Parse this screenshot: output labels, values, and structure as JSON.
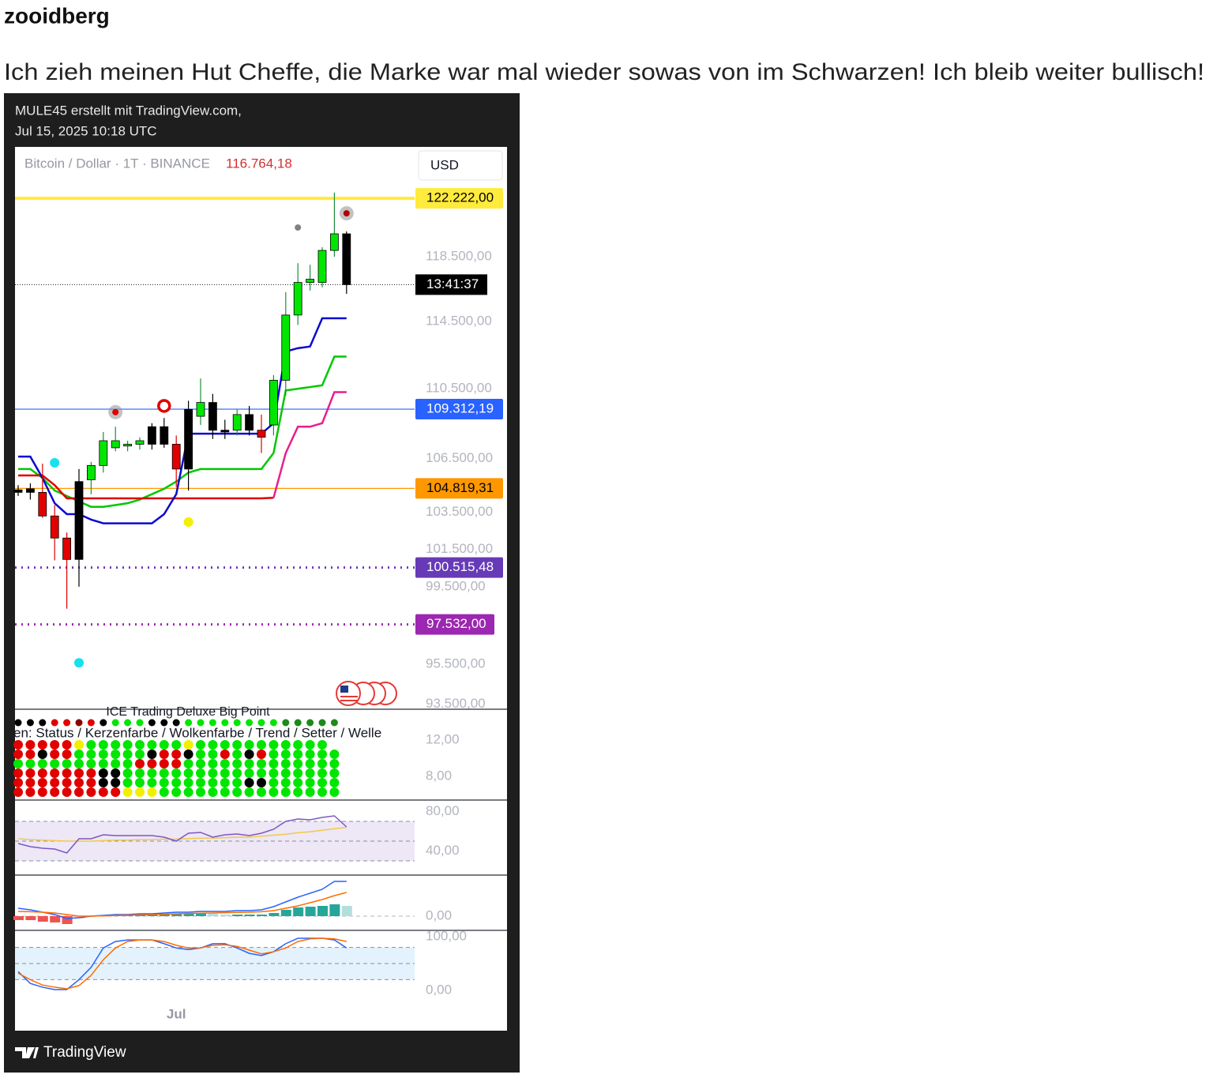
{
  "post": {
    "author": "zooidberg",
    "text": "Ich zieh meinen Hut Cheffe, die Marke war mal wieder sowas von im Schwarzen! Ich bleib weiter bullisch!"
  },
  "image": {
    "header": [
      "MULE45 erstellt mit TradingView.com,",
      "Jul 15, 2025 10:18 UTC"
    ],
    "footer": "TradingView"
  },
  "chart_data": [
    {
      "type": "candlestick",
      "title": "Bitcoin / Dollar · 1T · BINANCE",
      "last_price": 116764.18,
      "last_price_label": "116.764,18",
      "currency": "USD",
      "countdown": "13:41:37",
      "log_scale": true,
      "ylim": [
        93250,
        125600
      ],
      "yticks": [
        {
          "value": 118500,
          "label": "118.500,00"
        },
        {
          "value": 114500,
          "label": "114.500,00"
        },
        {
          "value": 110500,
          "label": "110.500,00"
        },
        {
          "value": 106500,
          "label": "106.500,00"
        },
        {
          "value": 103500,
          "label": "103.500,00"
        },
        {
          "value": 101500,
          "label": "101.500,00"
        },
        {
          "value": 99500,
          "label": "99.500,00"
        },
        {
          "value": 95500,
          "label": "95.500,00"
        },
        {
          "value": 93500,
          "label": "93.500,00"
        }
      ],
      "categories": [
        null,
        null,
        null,
        null,
        null,
        null,
        null,
        null,
        null,
        null,
        null,
        null,
        null,
        "Jul",
        null,
        null,
        null,
        null,
        null,
        null,
        null,
        null,
        null,
        null,
        null,
        null,
        null,
        null
      ],
      "open": [
        104740,
        104600,
        104600,
        103300,
        102100,
        100950,
        105300,
        106100,
        107500,
        107200,
        107300,
        107300,
        108300,
        107300,
        105900,
        108900,
        109700,
        108100,
        108100,
        109000,
        108100,
        108400,
        111000,
        114900,
        116900,
        116900,
        118900,
        119950
      ],
      "high": [
        105000,
        105100,
        106200,
        103900,
        102400,
        105900,
        106300,
        108000,
        108300,
        107500,
        107700,
        108500,
        108800,
        107800,
        109800,
        111100,
        110200,
        108700,
        109300,
        109500,
        109000,
        111300,
        116300,
        118100,
        118000,
        119100,
        122600,
        120100
      ],
      "low": [
        104400,
        104200,
        103200,
        100900,
        98350,
        99500,
        104500,
        105700,
        106900,
        106900,
        107000,
        107000,
        107100,
        104900,
        104700,
        108400,
        107600,
        107600,
        107800,
        107800,
        106800,
        107800,
        110100,
        114300,
        116400,
        116600,
        118500,
        116200
      ],
      "close": [
        104600,
        104800,
        103300,
        102100,
        100950,
        105200,
        106100,
        107500,
        107100,
        107300,
        107500,
        108300,
        107300,
        105900,
        109300,
        109700,
        108100,
        108000,
        109000,
        108100,
        107700,
        111000,
        114900,
        116900,
        117100,
        118900,
        119950,
        116764.18
      ],
      "candle_colors": [
        "#000000",
        "#000000",
        "#e00000",
        "#e00000",
        "#e00000",
        "#000000",
        "#00e600",
        "#00e600",
        "#00e600",
        "#00e600",
        "#00e600",
        "#000000",
        "#000000",
        "#e00000",
        "#000000",
        "#00e600",
        "#000000",
        "#000000",
        "#00e600",
        "#000000",
        "#e00000",
        "#00e600",
        "#00e600",
        "#00e600",
        "#00e600",
        "#00e600",
        "#00e600",
        "#000000"
      ],
      "series": [
        {
          "color": "#00c800",
          "values": [
            105900,
            105900,
            105400,
            104700,
            104400,
            104100,
            103800,
            103800,
            103900,
            104000,
            104200,
            104500,
            104800,
            105200,
            105700,
            105900,
            105900,
            105900,
            105900,
            105900,
            105900,
            106800,
            110400,
            110500,
            110600,
            110700,
            112400,
            112400
          ]
        },
        {
          "color": "#e00000",
          "values": [
            105540,
            105540,
            105540,
            105000,
            104270,
            104270,
            104270,
            104270,
            104270,
            104270,
            104270,
            104270,
            104270,
            104270,
            104270,
            104270,
            104270,
            104270,
            104270,
            104270,
            104270,
            104300,
            null,
            null,
            null,
            null,
            null,
            null
          ]
        },
        {
          "color": "#e91e8c",
          "values": [
            null,
            null,
            null,
            null,
            null,
            null,
            null,
            null,
            null,
            null,
            null,
            null,
            null,
            null,
            null,
            null,
            null,
            null,
            null,
            null,
            null,
            104300,
            106800,
            108300,
            108300,
            108500,
            110300,
            110300
          ]
        },
        {
          "color": "#0a0ad0",
          "values": [
            106600,
            106600,
            105400,
            104000,
            103400,
            103400,
            103100,
            102900,
            102900,
            102900,
            102900,
            102900,
            103400,
            104500,
            107900,
            107900,
            107900,
            107900,
            107900,
            107900,
            107900,
            108500,
            112700,
            112900,
            113000,
            114700,
            114700,
            114700
          ]
        }
      ],
      "levels": [
        {
          "value": 122222,
          "label": "122.222,00",
          "color": "#ffeb3b",
          "text_color": "#000000",
          "style": "solid"
        },
        {
          "value": 109312.19,
          "label": "109.312,19",
          "color": "#2962ff",
          "text_color": "#ffffff",
          "style": "thin"
        },
        {
          "value": 104819.31,
          "label": "104.819,31",
          "color": "#ff9800",
          "text_color": "#000000",
          "style": "thin"
        },
        {
          "value": 100515.48,
          "label": "100.515,48",
          "color": "#673ab7",
          "text_color": "#ffffff",
          "style": "dotted"
        },
        {
          "value": 97532,
          "label": "97.532,00",
          "color": "#9c27b0",
          "text_color": "#ffffff",
          "style": "dotted"
        }
      ],
      "markers": [
        {
          "x": 8,
          "value": 109140,
          "color": "#e00000",
          "style": "dot-ring"
        },
        {
          "x": 12,
          "value": 109500,
          "color": "#e00000",
          "style": "ring"
        },
        {
          "x": 3,
          "value": 106250,
          "color": "#18e0f0",
          "style": "dot"
        },
        {
          "x": 5,
          "value": 95570,
          "color": "#18e0f0",
          "style": "dot"
        },
        {
          "x": 14,
          "value": 102970,
          "color": "#f0f000",
          "style": "dot"
        },
        {
          "x": 23,
          "value": 120350,
          "color": "#808080",
          "style": "small"
        },
        {
          "x": 27,
          "value": 121260,
          "color": "#b00000",
          "style": "dot-ring"
        }
      ]
    },
    {
      "type": "dot-matrix",
      "title": "ICE Trading Deluxe Big Point",
      "subtitle": "en: Status / Kerzenfarbe / Wolkenfarbe / Trend / Setter / Welle",
      "ylim": [
        5.39,
        15.39
      ],
      "yticks": [
        {
          "value": 12,
          "label": "12,00"
        },
        {
          "value": 8,
          "label": "8,00"
        }
      ],
      "palette": {
        "k": "#000000",
        "r": "#e00000",
        "D": "#8b0000",
        "g": "#00e600",
        "G": "#1b8a1b",
        "y": "#f0f000"
      },
      "rows": [
        "kkkrrDrkgggkkkggggggggGGGGG",
        "rrrrryggggggggyggggggggggg",
        "rrkrrggggggkrrkggrgkrgggggg",
        "ggggggggggrrrrggggggggggggg",
        "rrrrrrrkkgggggggggggggggggg",
        "rrrrrrrkkggggggggggkkgggggg",
        "rrrrrrrrryyyggggggggggggggg"
      ]
    },
    {
      "type": "line",
      "ylim": [
        15.6,
        91.6
      ],
      "yticks": [
        {
          "value": 80,
          "label": "80,00"
        },
        {
          "value": 40,
          "label": "40,00"
        }
      ],
      "bands": [
        30,
        50,
        70
      ],
      "band_color": "#ede7f6",
      "series": [
        {
          "color": "#f2c94c",
          "values": [
            52.4,
            51.5,
            51,
            50.5,
            50,
            50,
            50,
            50.5,
            51,
            51,
            51.5,
            51.5,
            52,
            52,
            52.5,
            53,
            53,
            53.5,
            54,
            54,
            55,
            56,
            57,
            58.5,
            59.5,
            61,
            62.5,
            64
          ]
        },
        {
          "color": "#7e57c2",
          "values": [
            47.6,
            44.4,
            42.8,
            42,
            38,
            52.4,
            52.4,
            56.4,
            55.6,
            55.6,
            55.6,
            55.6,
            54,
            50,
            58,
            58.8,
            54,
            56.4,
            57.2,
            55.6,
            58,
            62,
            70,
            72.4,
            71.6,
            74,
            75.6,
            64.4
          ]
        }
      ]
    },
    {
      "type": "macd",
      "ylim": [
        -900,
        2600
      ],
      "yticks": [
        {
          "value": 0,
          "label": "0,00"
        }
      ],
      "histogram": [
        -250,
        -250,
        -350,
        -400,
        -500,
        -150,
        -50,
        0,
        50,
        100,
        100,
        100,
        150,
        150,
        200,
        200,
        150,
        100,
        100,
        100,
        100,
        200,
        400,
        550,
        600,
        650,
        750,
        650
      ],
      "series": [
        {
          "color": "#2962ff",
          "values": [
            500,
            400,
            250,
            100,
            -150,
            -100,
            0,
            50,
            100,
            100,
            150,
            150,
            200,
            250,
            250,
            300,
            300,
            300,
            350,
            350,
            400,
            600,
            900,
            1200,
            1450,
            1700,
            2200,
            2200
          ]
        },
        {
          "color": "#ff6d00",
          "values": [
            300,
            280,
            250,
            200,
            100,
            0,
            0,
            20,
            40,
            60,
            80,
            100,
            120,
            150,
            170,
            190,
            200,
            220,
            240,
            250,
            280,
            350,
            500,
            650,
            850,
            1050,
            1300,
            1500
          ]
        }
      ]
    },
    {
      "type": "line",
      "ylim": [
        -75,
        111.8
      ],
      "yticks": [
        {
          "value": 100,
          "label": "100,00"
        },
        {
          "value": 0,
          "label": "0,00"
        }
      ],
      "bands": [
        20,
        50,
        80
      ],
      "band_color": "#e3f2fd",
      "series": [
        {
          "color": "#2962ff",
          "values": [
            35,
            13,
            6,
            1.5,
            1.5,
            20,
            43,
            79,
            91,
            94,
            94,
            94,
            87,
            79,
            76,
            79,
            87,
            87,
            79,
            69,
            65,
            72,
            87,
            97,
            97,
            97,
            94,
            79
          ]
        },
        {
          "color": "#ff6d00",
          "values": [
            32,
            20,
            10,
            6,
            3,
            9,
            28,
            57,
            79,
            91,
            94,
            94,
            91,
            84,
            79,
            79,
            84,
            85,
            82,
            75,
            68,
            72,
            79,
            91,
            96,
            97,
            96,
            91
          ]
        }
      ]
    }
  ]
}
